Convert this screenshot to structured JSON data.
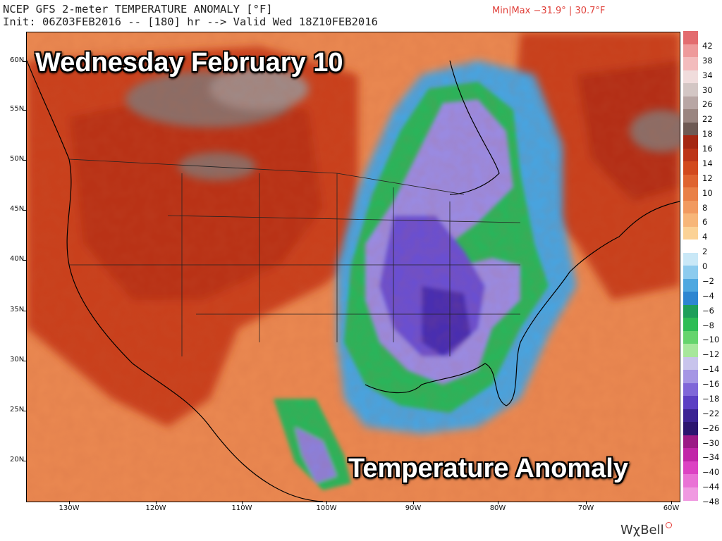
{
  "header": {
    "line1": "NCEP GFS 2-meter TEMPERATURE ANOMALY [°F]",
    "line2": "Init: 06Z03FEB2016 -- [180] hr --> Valid Wed 18Z10FEB2016",
    "minmax": "Min|Max −31.9° | 30.7°F"
  },
  "map": {
    "title": "Wednesday February 10",
    "subtitle": "Temperature Anomaly",
    "lat_labels": [
      "60N",
      "55N",
      "50N",
      "45N",
      "40N",
      "35N",
      "30N",
      "25N",
      "20N"
    ],
    "lon_labels": [
      "130W",
      "120W",
      "110W",
      "100W",
      "90W",
      "80W",
      "70W",
      "60W"
    ]
  },
  "legend": {
    "labels": [
      "42",
      "38",
      "34",
      "30",
      "26",
      "22",
      "18",
      "16",
      "14",
      "12",
      "10",
      "8",
      "6",
      "4",
      "2",
      "0",
      "−2",
      "−4",
      "−6",
      "−8",
      "−10",
      "−12",
      "−14",
      "−16",
      "−18",
      "−22",
      "−26",
      "−30",
      "−34",
      "−40",
      "−44",
      "−48"
    ],
    "colors": [
      "#e36c6f",
      "#ee9a9b",
      "#f3bcbd",
      "#f0dcdc",
      "#d3c6c4",
      "#b8a6a4",
      "#9a8580",
      "#6e5a54",
      "#a52712",
      "#bd3518",
      "#d24a1e",
      "#df6430",
      "#e98047",
      "#f19a60",
      "#f7b679",
      "#fbd296",
      "#ffffff",
      "#c9e8f7",
      "#8ccbee",
      "#4fa8e0",
      "#2d86d1",
      "#1e9f5a",
      "#2ebd55",
      "#65d46d",
      "#a7e79c",
      "#c8c4ec",
      "#a596e4",
      "#7f67d8",
      "#5b3fc3",
      "#3b2394",
      "#2b156f",
      "#9b1a86",
      "#c126a8",
      "#dc43c3",
      "#e972d5",
      "#f09ae1"
    ]
  },
  "brand": {
    "name": "WχBell"
  }
}
